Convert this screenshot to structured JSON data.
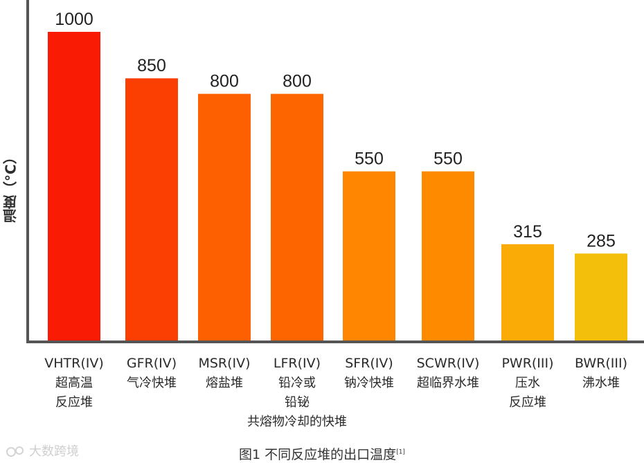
{
  "chart_data": {
    "type": "bar",
    "categories": [
      [
        "VHTR(IV)",
        "超高温",
        "反应堆"
      ],
      [
        "GFR(IV)",
        "气冷快堆"
      ],
      [
        "MSR(IV)",
        "熔盐堆"
      ],
      [
        "LFR(IV)",
        "铅冷或",
        "铅铋",
        "共熔物冷却的快堆"
      ],
      [
        "SFR(IV)",
        "钠冷快堆"
      ],
      [
        "SCWR(IV)",
        "超临界水堆"
      ],
      [
        "PWR(III)",
        "压水",
        "反应堆"
      ],
      [
        "BWR(III)",
        "沸水堆"
      ]
    ],
    "values": [
      1000,
      850,
      800,
      800,
      550,
      550,
      315,
      285
    ],
    "data_labels": [
      "1000",
      "850",
      "800",
      "800",
      "550",
      "550",
      "315",
      "285"
    ],
    "colors": [
      "#fa1b05",
      "#fb3f02",
      "#fd6000",
      "#fd6500",
      "#fe8600",
      "#fe8a00",
      "#fbab05",
      "#f3bf0a"
    ],
    "ylabel": "温度（°C）",
    "ylim": [
      0,
      1000
    ],
    "grid": false,
    "title": ""
  },
  "caption": {
    "text": "图1 不同反应堆的出口温度",
    "ref": "[1]"
  },
  "watermark": {
    "text": "大数跨境"
  }
}
